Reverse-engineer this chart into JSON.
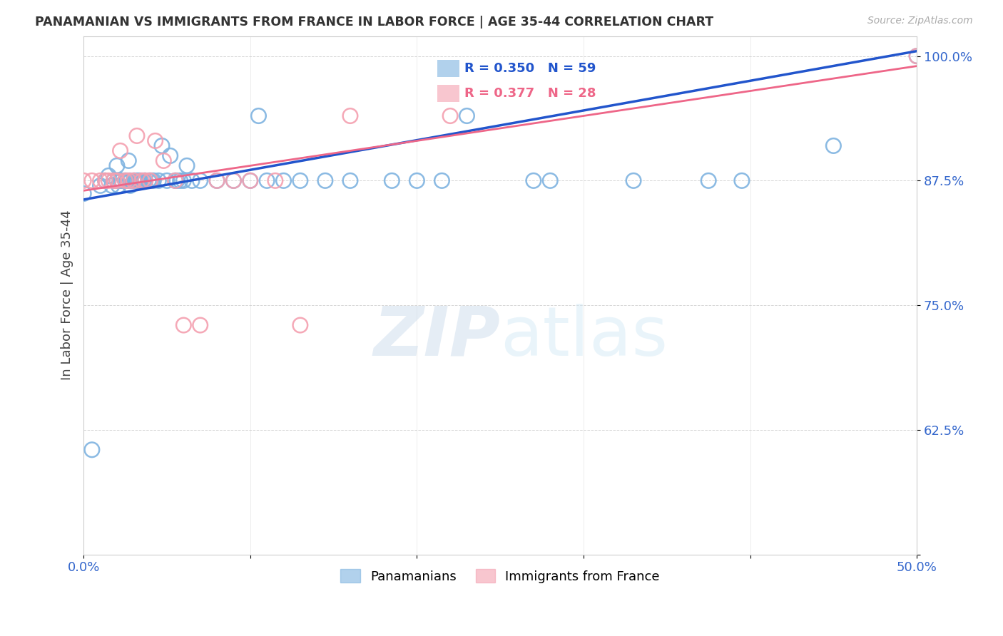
{
  "title": "PANAMANIAN VS IMMIGRANTS FROM FRANCE IN LABOR FORCE | AGE 35-44 CORRELATION CHART",
  "source": "Source: ZipAtlas.com",
  "ylabel": "In Labor Force | Age 35-44",
  "xlim": [
    0.0,
    0.5
  ],
  "ylim": [
    0.5,
    1.02
  ],
  "blue_R": 0.35,
  "blue_N": 59,
  "pink_R": 0.377,
  "pink_N": 28,
  "blue_color": "#7EB3E0",
  "pink_color": "#F4A0B0",
  "blue_line_color": "#2255CC",
  "pink_line_color": "#EE6688",
  "blue_label": "Panamanians",
  "pink_label": "Immigrants from France",
  "blue_points_x": [
    0.0,
    0.005,
    0.01,
    0.013,
    0.015,
    0.017,
    0.018,
    0.02,
    0.02,
    0.021,
    0.022,
    0.023,
    0.025,
    0.026,
    0.027,
    0.028,
    0.028,
    0.03,
    0.031,
    0.032,
    0.033,
    0.034,
    0.036,
    0.037,
    0.039,
    0.04,
    0.041,
    0.042,
    0.045,
    0.047,
    0.05,
    0.052,
    0.055,
    0.056,
    0.058,
    0.06,
    0.062,
    0.065,
    0.07,
    0.08,
    0.09,
    0.1,
    0.105,
    0.11,
    0.12,
    0.13,
    0.145,
    0.16,
    0.185,
    0.2,
    0.215,
    0.23,
    0.27,
    0.28,
    0.33,
    0.375,
    0.395,
    0.45,
    0.5
  ],
  "blue_points_y": [
    0.862,
    0.605,
    0.87,
    0.875,
    0.88,
    0.87,
    0.875,
    0.875,
    0.89,
    0.87,
    0.875,
    0.875,
    0.875,
    0.875,
    0.895,
    0.87,
    0.875,
    0.875,
    0.875,
    0.875,
    0.875,
    0.875,
    0.875,
    0.875,
    0.875,
    0.875,
    0.875,
    0.875,
    0.875,
    0.91,
    0.875,
    0.9,
    0.875,
    0.875,
    0.875,
    0.875,
    0.89,
    0.875,
    0.875,
    0.875,
    0.875,
    0.875,
    0.94,
    0.875,
    0.875,
    0.875,
    0.875,
    0.875,
    0.875,
    0.875,
    0.875,
    0.94,
    0.875,
    0.875,
    0.875,
    0.875,
    0.875,
    0.91,
    1.0
  ],
  "pink_points_x": [
    0.0,
    0.005,
    0.01,
    0.013,
    0.015,
    0.018,
    0.02,
    0.022,
    0.025,
    0.027,
    0.03,
    0.032,
    0.035,
    0.037,
    0.04,
    0.043,
    0.048,
    0.055,
    0.06,
    0.07,
    0.08,
    0.09,
    0.1,
    0.115,
    0.13,
    0.16,
    0.22,
    0.5
  ],
  "pink_points_y": [
    0.875,
    0.875,
    0.875,
    0.875,
    0.875,
    0.875,
    0.875,
    0.905,
    0.875,
    0.875,
    0.875,
    0.92,
    0.875,
    0.875,
    0.875,
    0.915,
    0.895,
    0.875,
    0.73,
    0.73,
    0.875,
    0.875,
    0.875,
    0.875,
    0.73,
    0.94,
    0.94,
    1.0
  ],
  "background_color": "#ffffff",
  "grid_color": "#CCCCCC",
  "yticks": [
    0.5,
    0.625,
    0.75,
    0.875,
    1.0
  ],
  "xticks": [
    0.0,
    0.1,
    0.2,
    0.3,
    0.4,
    0.5
  ],
  "blue_line_x0": 0.0,
  "blue_line_y0": 0.856,
  "blue_line_x1": 0.5,
  "blue_line_y1": 1.005,
  "pink_line_x0": 0.0,
  "pink_line_y0": 0.865,
  "pink_line_x1": 0.5,
  "pink_line_y1": 0.99
}
